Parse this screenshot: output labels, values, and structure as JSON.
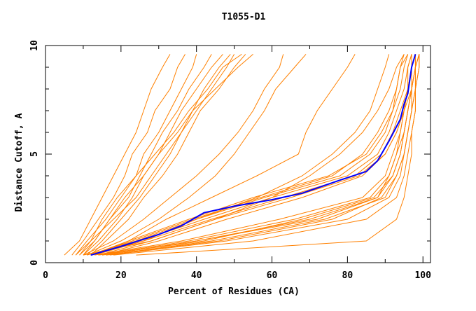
{
  "chart_data": {
    "type": "line",
    "title": "T1055-D1",
    "xlabel": "Percent of Residues (CA)",
    "ylabel": "Distance Cutoff, A",
    "xlim": [
      0,
      102
    ],
    "ylim": [
      0,
      10
    ],
    "x_ticks": [
      0,
      20,
      40,
      60,
      80,
      100
    ],
    "x_minor_ticks": [
      10,
      30,
      50,
      70,
      90
    ],
    "y_ticks": [
      0,
      5,
      10
    ],
    "y_minor_ticks": [
      1,
      2,
      3,
      4,
      6,
      7,
      8,
      9
    ],
    "grid": false,
    "colors": {
      "models": "#ff8000",
      "highlight": "#0000ff"
    },
    "y_levels": [
      0.35,
      1,
      2,
      3,
      4,
      5,
      6,
      7,
      8,
      9,
      9.6
    ],
    "model_series_x": [
      [
        5,
        9,
        12,
        15,
        18,
        21,
        24,
        26,
        28,
        31,
        33
      ],
      [
        7,
        10,
        14,
        18,
        21,
        23,
        27,
        29,
        33,
        35,
        37
      ],
      [
        8,
        11,
        16,
        20,
        24,
        26,
        30,
        33,
        36,
        39,
        40
      ],
      [
        9,
        13,
        17,
        22,
        25,
        28,
        31,
        35,
        38,
        42,
        44
      ],
      [
        10,
        14,
        19,
        23,
        26,
        30,
        33,
        36,
        40,
        44,
        47
      ],
      [
        9,
        12,
        18,
        24,
        28,
        32,
        36,
        40,
        44,
        48,
        50
      ],
      [
        11,
        15,
        20,
        25,
        29,
        33,
        36,
        39,
        42,
        46,
        49
      ],
      [
        10,
        13,
        17,
        21,
        26,
        30,
        35,
        39,
        45,
        51,
        55
      ],
      [
        12,
        16,
        22,
        26,
        31,
        35,
        38,
        41,
        46,
        50,
        53
      ],
      [
        8,
        12,
        15,
        19,
        24,
        29,
        34,
        38,
        43,
        47,
        52
      ],
      [
        10,
        18,
        26,
        33,
        40,
        46,
        51,
        55,
        58,
        62,
        63
      ],
      [
        11,
        20,
        30,
        38,
        45,
        50,
        54,
        58,
        61,
        66,
        69
      ],
      [
        12,
        22,
        32,
        44,
        56,
        67,
        69,
        72,
        76,
        80,
        82
      ],
      [
        10,
        28,
        45,
        60,
        70,
        78,
        84,
        88,
        91,
        93,
        95
      ],
      [
        12,
        26,
        40,
        56,
        68,
        76,
        82,
        86,
        88,
        90,
        91
      ],
      [
        13,
        22,
        38,
        55,
        75,
        85,
        89,
        92,
        94,
        95,
        96
      ],
      [
        12,
        25,
        42,
        60,
        80,
        88,
        91,
        93,
        95,
        96,
        97
      ],
      [
        14,
        28,
        45,
        65,
        83,
        90,
        93,
        95,
        96,
        97,
        98
      ],
      [
        11,
        24,
        40,
        58,
        78,
        86,
        90,
        92,
        93,
        94,
        95
      ],
      [
        13,
        26,
        44,
        63,
        82,
        89,
        92,
        94,
        96,
        97,
        98
      ],
      [
        15,
        30,
        48,
        68,
        84,
        90,
        93,
        95,
        97,
        98,
        99
      ],
      [
        12,
        23,
        39,
        57,
        76,
        84,
        88,
        91,
        93,
        94,
        96
      ],
      [
        15,
        40,
        70,
        88,
        92,
        94,
        95,
        96,
        97,
        98,
        98
      ],
      [
        14,
        38,
        66,
        86,
        91,
        93,
        95,
        96,
        97,
        97,
        98
      ],
      [
        16,
        44,
        74,
        90,
        93,
        95,
        96,
        97,
        98,
        99,
        99
      ],
      [
        13,
        36,
        62,
        84,
        90,
        92,
        94,
        95,
        96,
        97,
        97
      ],
      [
        17,
        48,
        80,
        91,
        94,
        95,
        96,
        97,
        98,
        98,
        99
      ],
      [
        18,
        55,
        85,
        93,
        95,
        96,
        97,
        98,
        98,
        99,
        99
      ],
      [
        14,
        42,
        68,
        87,
        92,
        94,
        95,
        96,
        97,
        98,
        98
      ],
      [
        24,
        85,
        93,
        95,
        96,
        97,
        97,
        98,
        98,
        98,
        99
      ],
      [
        16,
        46,
        76,
        89,
        93,
        95,
        96,
        97,
        97,
        98,
        99
      ],
      [
        15,
        40,
        72,
        88,
        91,
        93,
        94,
        95,
        96,
        96,
        97
      ]
    ],
    "highlight_series": {
      "x": [
        12,
        20,
        30,
        36,
        42,
        50,
        60,
        68,
        78,
        85,
        88,
        91,
        94,
        95,
        96,
        97,
        98
      ],
      "y": [
        0.35,
        0.75,
        1.3,
        1.7,
        2.3,
        2.6,
        2.9,
        3.2,
        3.8,
        4.2,
        4.7,
        5.6,
        6.6,
        7.3,
        7.8,
        9,
        9.6
      ]
    }
  }
}
